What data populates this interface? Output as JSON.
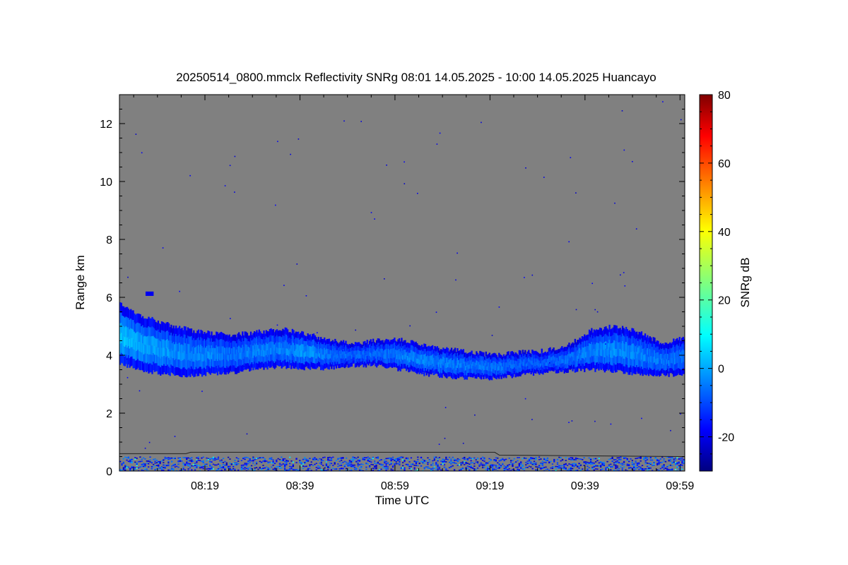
{
  "chart_data": {
    "type": "heatmap",
    "title": "20250514_0800.mmclx Reflectivity SNRg   08:01 14.05.2025 - 10:00 14.05.2025 Huancayo",
    "xlabel": "Time UTC",
    "ylabel": "Range km",
    "x_range_minutes": [
      481,
      600
    ],
    "x_ticks": [
      {
        "label": "08:19",
        "minutes": 499
      },
      {
        "label": "08:39",
        "minutes": 519
      },
      {
        "label": "08:59",
        "minutes": 539
      },
      {
        "label": "09:19",
        "minutes": 559
      },
      {
        "label": "09:39",
        "minutes": 579
      },
      {
        "label": "09:59",
        "minutes": 599
      }
    ],
    "ylim": [
      0,
      13
    ],
    "y_ticks": [
      0,
      2,
      4,
      6,
      8,
      10,
      12
    ],
    "background_color": "#808080",
    "colorbar": {
      "label": "SNRg dB",
      "range": [
        -30,
        80
      ],
      "ticks": [
        -20,
        0,
        20,
        40,
        60,
        80
      ],
      "colormap": "jet"
    },
    "cloud_layer": {
      "description_points": [
        {
          "time": 481,
          "bottom": 3.7,
          "top": 5.8,
          "peak_snr": 5
        },
        {
          "time": 485,
          "bottom": 3.5,
          "top": 5.4,
          "peak_snr": 2
        },
        {
          "time": 490,
          "bottom": 3.35,
          "top": 5.1,
          "peak_snr": 0
        },
        {
          "time": 495,
          "bottom": 3.3,
          "top": 4.9,
          "peak_snr": -2
        },
        {
          "time": 500,
          "bottom": 3.35,
          "top": 4.75,
          "peak_snr": -2
        },
        {
          "time": 505,
          "bottom": 3.4,
          "top": 4.7,
          "peak_snr": -4
        },
        {
          "time": 510,
          "bottom": 3.55,
          "top": 4.8,
          "peak_snr": -2
        },
        {
          "time": 515,
          "bottom": 3.6,
          "top": 4.9,
          "peak_snr": -3
        },
        {
          "time": 520,
          "bottom": 3.55,
          "top": 4.75,
          "peak_snr": 0
        },
        {
          "time": 525,
          "bottom": 3.55,
          "top": 4.5,
          "peak_snr": -4
        },
        {
          "time": 530,
          "bottom": 3.65,
          "top": 4.4,
          "peak_snr": -6
        },
        {
          "time": 535,
          "bottom": 3.65,
          "top": 4.5,
          "peak_snr": -5
        },
        {
          "time": 540,
          "bottom": 3.5,
          "top": 4.55,
          "peak_snr": -3
        },
        {
          "time": 545,
          "bottom": 3.35,
          "top": 4.35,
          "peak_snr": -2
        },
        {
          "time": 550,
          "bottom": 3.25,
          "top": 4.2,
          "peak_snr": -3
        },
        {
          "time": 555,
          "bottom": 3.2,
          "top": 4.1,
          "peak_snr": -4
        },
        {
          "time": 560,
          "bottom": 3.2,
          "top": 4.0,
          "peak_snr": -4
        },
        {
          "time": 565,
          "bottom": 3.3,
          "top": 4.1,
          "peak_snr": -6
        },
        {
          "time": 570,
          "bottom": 3.4,
          "top": 4.15,
          "peak_snr": -6
        },
        {
          "time": 575,
          "bottom": 3.45,
          "top": 4.3,
          "peak_snr": -5
        },
        {
          "time": 580,
          "bottom": 3.5,
          "top": 4.85,
          "peak_snr": -2
        },
        {
          "time": 585,
          "bottom": 3.45,
          "top": 5.0,
          "peak_snr": -1
        },
        {
          "time": 590,
          "bottom": 3.35,
          "top": 4.8,
          "peak_snr": -2
        },
        {
          "time": 595,
          "bottom": 3.3,
          "top": 4.4,
          "peak_snr": -4
        },
        {
          "time": 600,
          "bottom": 3.35,
          "top": 4.6,
          "peak_snr": -4
        }
      ]
    },
    "ground_clutter": {
      "bottom": 0.0,
      "top": 0.7,
      "peak_snr": 0
    }
  }
}
